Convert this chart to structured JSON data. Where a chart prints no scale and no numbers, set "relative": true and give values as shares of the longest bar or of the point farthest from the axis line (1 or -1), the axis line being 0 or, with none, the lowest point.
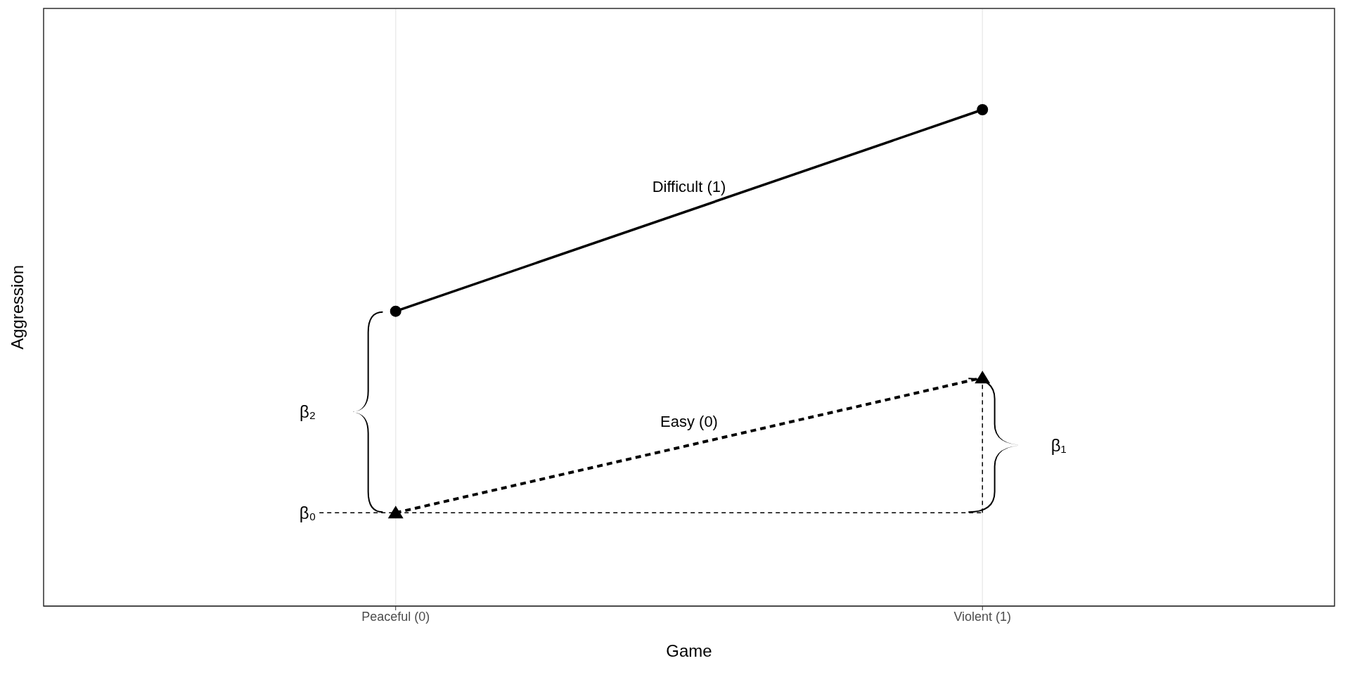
{
  "chart_data": {
    "type": "line",
    "xlabel": "Game",
    "ylabel": "Aggression",
    "categories": [
      "Peaceful (0)",
      "Violent (1)"
    ],
    "relative": true,
    "grid": true,
    "legend": false,
    "series": [
      {
        "name": "Difficult (1)",
        "color": "#000000",
        "values": [
          0.594,
          1
        ],
        "marker": "circle",
        "line_style": "solid"
      },
      {
        "name": "Easy (0)",
        "color": "#000000",
        "values": [
          0.188,
          0.46
        ],
        "marker": "triangle",
        "line_style": "dashed"
      }
    ],
    "ref_lines": [
      {
        "axis": "y",
        "value": 0.188,
        "color": "#000000",
        "line_style": "dashed"
      },
      {
        "axis": "x",
        "value": "Violent (1)",
        "color": "#000000",
        "line_style": "dashed"
      }
    ],
    "annotations": [
      "β₂",
      "β₀",
      "β₁"
    ]
  }
}
